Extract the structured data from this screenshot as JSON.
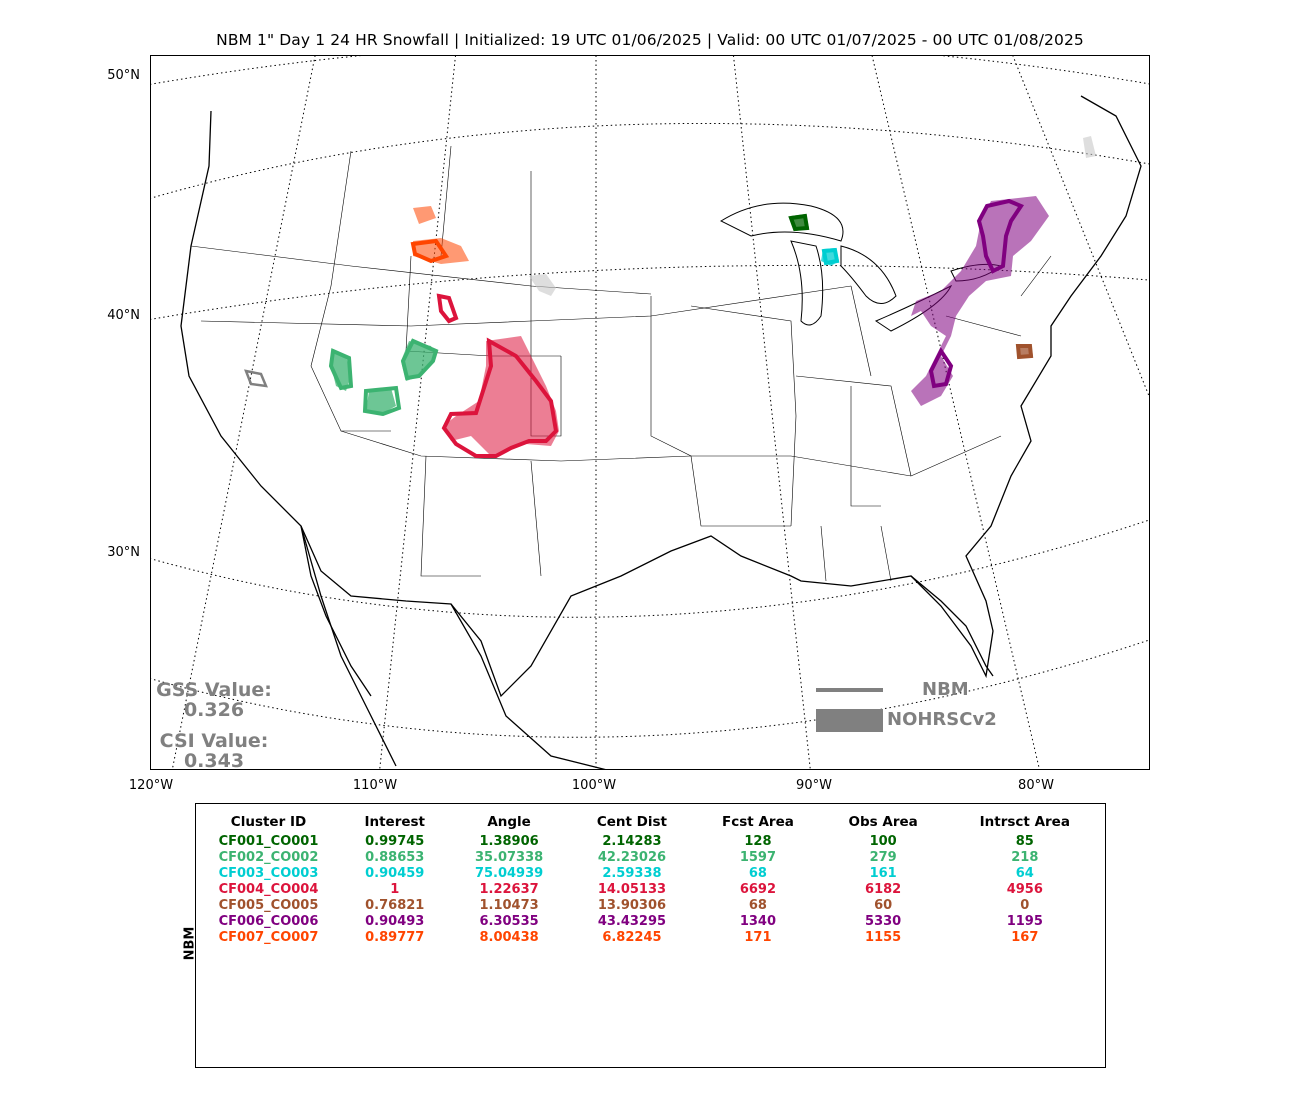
{
  "title": "NBM 1\" Day 1 24 HR Snowfall | Initialized: 19 UTC 01/06/2025 | Valid: 00 UTC 01/07/2025 - 00 UTC 01/08/2025",
  "map": {
    "lat_labels": [
      "50°N",
      "40°N",
      "30°N"
    ],
    "lon_labels": [
      "120°W",
      "110°W",
      "100°W",
      "90°W",
      "80°W"
    ],
    "gss_label": "GSS Value:",
    "gss_value": "0.326",
    "csi_label": "CSI Value:",
    "csi_value": "0.343",
    "legend": {
      "forecast_label": "NBM",
      "observed_label": "NOHRSCv2",
      "color": "#808080"
    }
  },
  "table": {
    "row_label": "NBM",
    "headers": [
      "Cluster ID",
      "Interest",
      "Angle",
      "Cent Dist",
      "Fcst Area",
      "Obs Area",
      "Intrsct Area"
    ],
    "rows": [
      {
        "color": "#006400",
        "cells": [
          "CF001_CO001",
          "0.99745",
          "1.38906",
          "2.14283",
          "128",
          "100",
          "85"
        ]
      },
      {
        "color": "#3cb371",
        "cells": [
          "CF002_CO002",
          "0.88653",
          "35.07338",
          "42.23026",
          "1597",
          "279",
          "218"
        ]
      },
      {
        "color": "#00ced1",
        "cells": [
          "CF003_CO003",
          "0.90459",
          "75.04939",
          "2.59338",
          "68",
          "161",
          "64"
        ]
      },
      {
        "color": "#dc143c",
        "cells": [
          "CF004_CO004",
          "1",
          "1.22637",
          "14.05133",
          "6692",
          "6182",
          "4956"
        ]
      },
      {
        "color": "#a0522d",
        "cells": [
          "CF005_CO005",
          "0.76821",
          "1.10473",
          "13.90306",
          "68",
          "60",
          "0"
        ]
      },
      {
        "color": "#800080",
        "cells": [
          "CF006_CO006",
          "0.90493",
          "6.30535",
          "43.43295",
          "1340",
          "5330",
          "1195"
        ]
      },
      {
        "color": "#ff4500",
        "cells": [
          "CF007_CO007",
          "0.89777",
          "8.00438",
          "6.82245",
          "171",
          "1155",
          "167"
        ]
      }
    ]
  }
}
